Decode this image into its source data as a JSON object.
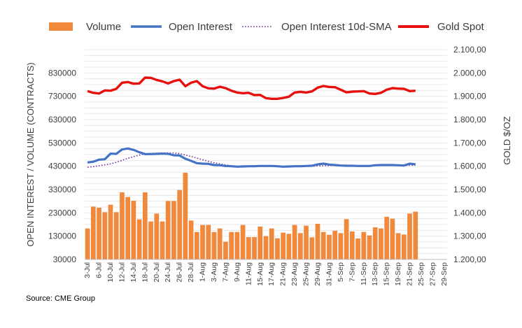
{
  "chart_data": {
    "type": "bar+line",
    "source": "Source: CME Group",
    "colors": {
      "volume": "#F0893C",
      "open_interest": "#4472C4",
      "sma": "#7030A0",
      "gold": "#E8100C",
      "grid": "#E7E7E7",
      "axis_text": "#404040"
    },
    "legend": [
      {
        "name": "Volume",
        "style": "bar"
      },
      {
        "name": "Open Interest",
        "style": "line"
      },
      {
        "name": "Open Interest 10d-SMA",
        "style": "dotted"
      },
      {
        "name": "Gold Spot",
        "style": "line-thick"
      }
    ],
    "ylabel_left": "OPEN INTEREST / VOLUME (CONTRACTS)",
    "ylabel_right": "GOLD $/OZ",
    "y_left": {
      "min": 30000,
      "max": 930000,
      "ticks": [
        "30000",
        "130000",
        "230000",
        "330000",
        "430000",
        "530000",
        "630000",
        "730000",
        "830000"
      ]
    },
    "y_right": {
      "min": 1200,
      "max": 2100,
      "ticks": [
        "1.200,00",
        "1.300,00",
        "1.400,00",
        "1.500,00",
        "1.600,00",
        "1.700,00",
        "1.800,00",
        "1.900,00",
        "2.000,00",
        "2.100,00"
      ]
    },
    "x_tick_labels": [
      "3-Jul",
      "6-Jul",
      "10-Jul",
      "12-Jul",
      "14-Jul",
      "18-Jul",
      "20-Jul",
      "24-Jul",
      "26-Jul",
      "28-Jul",
      "1-Aug",
      "3-Aug",
      "7-Aug",
      "9-Aug",
      "11-Aug",
      "15-Aug",
      "17-Aug",
      "21-Aug",
      "23-Aug",
      "25-Aug",
      "29-Aug",
      "31-Aug",
      "5-Sep",
      "7-Sep",
      "11-Sep",
      "13-Sep",
      "15-Sep",
      "19-Sep",
      "21-Sep",
      "25-Sep",
      "27-Sep",
      "29-Sep"
    ],
    "dates": [
      "3-Jul",
      "5-Jul",
      "6-Jul",
      "7-Jul",
      "10-Jul",
      "11-Jul",
      "12-Jul",
      "13-Jul",
      "14-Jul",
      "17-Jul",
      "18-Jul",
      "19-Jul",
      "20-Jul",
      "21-Jul",
      "24-Jul",
      "25-Jul",
      "26-Jul",
      "27-Jul",
      "28-Jul",
      "31-Jul",
      "1-Aug",
      "2-Aug",
      "3-Aug",
      "4-Aug",
      "7-Aug",
      "8-Aug",
      "9-Aug",
      "10-Aug",
      "11-Aug",
      "14-Aug",
      "15-Aug",
      "16-Aug",
      "17-Aug",
      "18-Aug",
      "21-Aug",
      "22-Aug",
      "23-Aug",
      "24-Aug",
      "25-Aug",
      "28-Aug",
      "29-Aug",
      "30-Aug",
      "31-Aug",
      "1-Sep",
      "5-Sep",
      "6-Sep",
      "7-Sep",
      "8-Sep",
      "11-Sep",
      "12-Sep",
      "13-Sep",
      "14-Sep",
      "15-Sep",
      "18-Sep",
      "19-Sep",
      "20-Sep",
      "21-Sep",
      "22-Sep",
      "25-Sep",
      "26-Sep",
      "27-Sep",
      "28-Sep",
      "29-Sep"
    ],
    "volume": [
      163000,
      257000,
      252000,
      233000,
      265000,
      233000,
      318000,
      298000,
      282000,
      202000,
      318000,
      193000,
      227000,
      193000,
      281000,
      281000,
      328000,
      402000,
      197000,
      148000,
      178000,
      178000,
      148000,
      163000,
      106000,
      148000,
      148000,
      178000,
      126000,
      126000,
      171000,
      130000,
      163000,
      121000,
      145000,
      140000,
      178000,
      143000,
      175000,
      125000,
      183000,
      148000,
      136000,
      153000,
      143000,
      203000,
      150000,
      120000,
      148000,
      133000,
      168000,
      163000,
      213000,
      205000,
      143000,
      137000,
      227000,
      235000,
      null,
      null,
      null,
      null,
      null
    ],
    "open_interest": [
      446000,
      449000,
      458000,
      460000,
      484000,
      483000,
      502000,
      506000,
      500000,
      490000,
      482000,
      482000,
      483000,
      484000,
      483000,
      477000,
      476000,
      462000,
      453000,
      443000,
      441000,
      440000,
      435000,
      434000,
      431000,
      430000,
      428000,
      429000,
      430000,
      430000,
      431000,
      431000,
      431000,
      430000,
      428000,
      429000,
      430000,
      430000,
      431000,
      432000,
      438000,
      441000,
      437000,
      435000,
      433000,
      432000,
      432000,
      431000,
      431000,
      431000,
      434000,
      435000,
      435000,
      435000,
      434000,
      433000,
      441000,
      438000,
      null,
      null,
      null,
      null,
      null
    ],
    "open_interest_sma": [
      425000,
      428000,
      432000,
      436000,
      440000,
      447000,
      455000,
      464000,
      471000,
      478000,
      483000,
      485000,
      486000,
      487000,
      487000,
      487000,
      484000,
      478000,
      472000,
      465000,
      458000,
      451000,
      445000,
      440000,
      436000,
      432000,
      430000,
      430000,
      430000,
      430000,
      430000,
      430000,
      430000,
      430000,
      430000,
      430000,
      430000,
      430000,
      430000,
      430000,
      431000,
      432000,
      433000,
      433000,
      433000,
      433000,
      433000,
      433000,
      433000,
      433000,
      433000,
      433000,
      433000,
      433000,
      433000,
      433000,
      434000,
      435000,
      null,
      null,
      null,
      null,
      null
    ],
    "gold_spot": [
      1922,
      1915,
      1912,
      1925,
      1924,
      1932,
      1958,
      1961,
      1954,
      1955,
      1980,
      1979,
      1970,
      1964,
      1955,
      1965,
      1971,
      1943,
      1958,
      1965,
      1943,
      1934,
      1933,
      1941,
      1935,
      1924,
      1916,
      1913,
      1915,
      1905,
      1906,
      1892,
      1889,
      1889,
      1893,
      1898,
      1916,
      1919,
      1916,
      1921,
      1937,
      1944,
      1940,
      1939,
      1928,
      1917,
      1920,
      1921,
      1922,
      1912,
      1910,
      1915,
      1928,
      1935,
      1933,
      1932,
      1922,
      1924,
      null,
      null,
      null,
      null,
      null
    ]
  }
}
